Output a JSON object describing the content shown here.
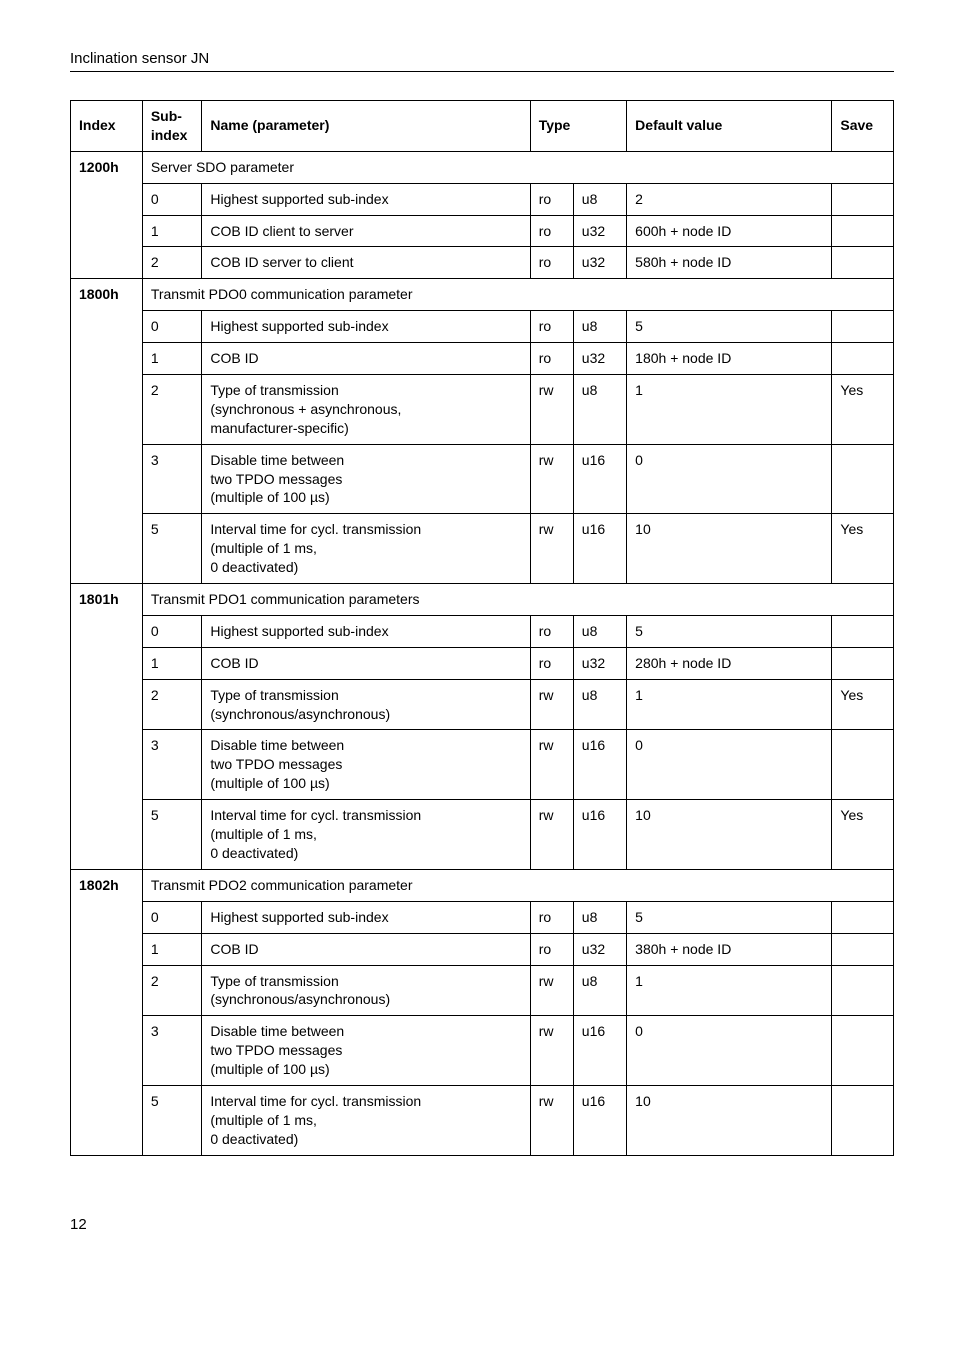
{
  "doc_header": "Inclination sensor JN",
  "page_number": "12",
  "table": {
    "headers": {
      "index": "Index",
      "sub": "Sub-\nindex",
      "name": "Name (parameter)",
      "type": "Type",
      "default": "Default value",
      "save": "Save"
    },
    "sections": [
      {
        "index": "1200h",
        "title": "Server SDO parameter",
        "rows": [
          {
            "sub": "0",
            "name": "Highest supported sub-index",
            "t1": "ro",
            "t2": "u8",
            "default": "2",
            "save": ""
          },
          {
            "sub": "1",
            "name": "COB ID client to server",
            "t1": "ro",
            "t2": "u32",
            "default": "600h + node ID",
            "save": ""
          },
          {
            "sub": "2",
            "name": "COB ID server to client",
            "t1": "ro",
            "t2": "u32",
            "default": "580h + node ID",
            "save": ""
          }
        ]
      },
      {
        "index": "1800h",
        "title": "Transmit PDO0 communication parameter",
        "rows": [
          {
            "sub": "0",
            "name": "Highest supported sub-index",
            "t1": "ro",
            "t2": "u8",
            "default": "5",
            "save": ""
          },
          {
            "sub": "1",
            "name": "COB ID",
            "t1": "ro",
            "t2": "u32",
            "default": "180h + node ID",
            "save": ""
          },
          {
            "sub": "2",
            "name": "Type of transmission\n(synchronous + asynchronous,\nmanufacturer-specific)",
            "t1": "rw",
            "t2": "u8",
            "default": "1",
            "save": "Yes"
          },
          {
            "sub": "3",
            "name": "Disable time between\ntwo TPDO messages\n(multiple of 100 µs)",
            "t1": "rw",
            "t2": "u16",
            "default": "0",
            "save": ""
          },
          {
            "sub": "5",
            "name": "Interval time for cycl. transmission\n(multiple of 1 ms,\n0 deactivated)",
            "t1": "rw",
            "t2": "u16",
            "default": "10",
            "save": "Yes"
          }
        ]
      },
      {
        "index": "1801h",
        "title": "Transmit PDO1 communication parameters",
        "rows": [
          {
            "sub": "0",
            "name": "Highest supported sub-index",
            "t1": "ro",
            "t2": "u8",
            "default": "5",
            "save": ""
          },
          {
            "sub": "1",
            "name": "COB ID",
            "t1": "ro",
            "t2": "u32",
            "default": "280h + node ID",
            "save": ""
          },
          {
            "sub": "2",
            "name": "Type of transmission\n(synchronous/asynchronous)",
            "t1": "rw",
            "t2": "u8",
            "default": "1",
            "save": "Yes"
          },
          {
            "sub": "3",
            "name": "Disable time between\ntwo TPDO messages\n(multiple of 100 µs)",
            "t1": "rw",
            "t2": "u16",
            "default": "0",
            "save": ""
          },
          {
            "sub": "5",
            "name": "Interval time for cycl. transmission\n(multiple of 1 ms,\n0 deactivated)",
            "t1": "rw",
            "t2": "u16",
            "default": "10",
            "save": "Yes"
          }
        ]
      },
      {
        "index": "1802h",
        "title": "Transmit PDO2 communication parameter",
        "rows": [
          {
            "sub": "0",
            "name": "Highest supported sub-index",
            "t1": "ro",
            "t2": "u8",
            "default": "5",
            "save": ""
          },
          {
            "sub": "1",
            "name": "COB ID",
            "t1": "ro",
            "t2": "u32",
            "default": "380h + node ID",
            "save": ""
          },
          {
            "sub": "2",
            "name": "Type of transmission\n(synchronous/asynchronous)",
            "t1": "rw",
            "t2": "u8",
            "default": "1",
            "save": ""
          },
          {
            "sub": "3",
            "name": "Disable time between\ntwo TPDO messages\n(multiple of 100 µs)",
            "t1": "rw",
            "t2": "u16",
            "default": "0",
            "save": ""
          },
          {
            "sub": "5",
            "name": "Interval time for cycl. transmission\n(multiple of 1 ms,\n0 deactivated)",
            "t1": "rw",
            "t2": "u16",
            "default": "10",
            "save": ""
          }
        ]
      }
    ]
  }
}
